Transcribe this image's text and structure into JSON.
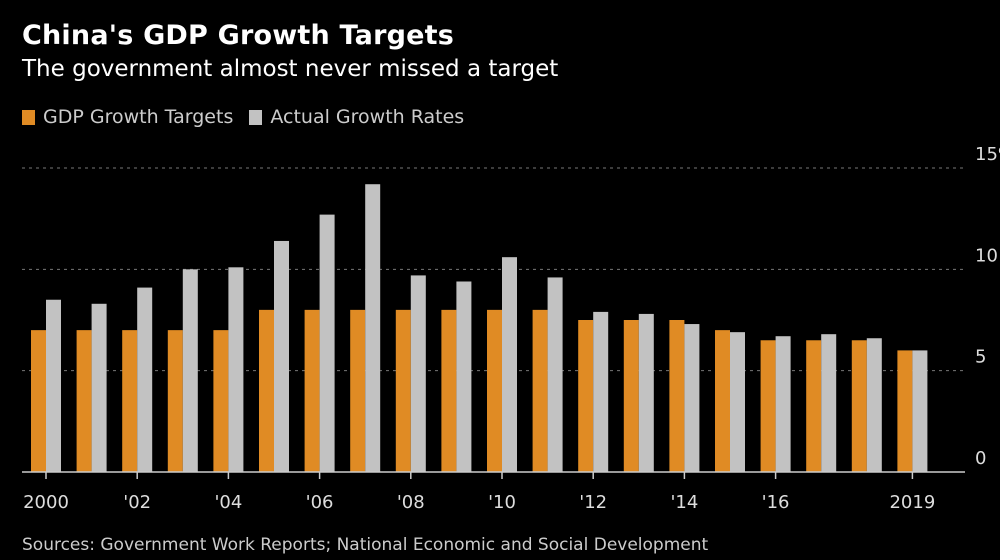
{
  "chart_data": {
    "type": "bar",
    "title": "China's GDP Growth Targets",
    "subtitle": "The government almost never missed a target",
    "categories": [
      "2000",
      "2001",
      "2002",
      "2003",
      "2004",
      "2005",
      "2006",
      "2007",
      "2008",
      "2009",
      "2010",
      "2011",
      "2012",
      "2013",
      "2014",
      "2015",
      "2016",
      "2017",
      "2018",
      "2019"
    ],
    "series": [
      {
        "name": "GDP Growth Targets",
        "color": "#e08b24",
        "values": [
          7,
          7,
          7,
          7,
          7,
          8,
          8,
          8,
          8,
          8,
          8,
          8,
          7.5,
          7.5,
          7.5,
          7,
          6.5,
          6.5,
          6.5,
          6
        ]
      },
      {
        "name": "Actual Growth Rates",
        "color": "#c2c2c2",
        "values": [
          8.5,
          8.3,
          9.1,
          10.0,
          10.1,
          11.4,
          12.7,
          14.2,
          9.7,
          9.4,
          10.6,
          9.6,
          7.9,
          7.8,
          7.3,
          6.9,
          6.7,
          6.8,
          6.6,
          6.0
        ]
      }
    ],
    "x_tick_labels": [
      {
        "category": "2000",
        "label": "2000"
      },
      {
        "category": "2002",
        "label": "'02"
      },
      {
        "category": "2004",
        "label": "'04"
      },
      {
        "category": "2006",
        "label": "'06"
      },
      {
        "category": "2008",
        "label": "'08"
      },
      {
        "category": "2010",
        "label": "'10"
      },
      {
        "category": "2012",
        "label": "'12"
      },
      {
        "category": "2014",
        "label": "'14"
      },
      {
        "category": "2016",
        "label": "'16"
      },
      {
        "category": "2019",
        "label": "2019"
      }
    ],
    "y_ticks": [
      {
        "value": 0,
        "label": "0"
      },
      {
        "value": 5,
        "label": "5"
      },
      {
        "value": 10,
        "label": "10"
      },
      {
        "value": 15,
        "label": "15%"
      }
    ],
    "ylim": [
      0,
      15
    ],
    "grid": true,
    "y_axis_side": "right",
    "legend_placement": "top-left",
    "xlabel": "",
    "ylabel": ""
  },
  "source": "Sources: Government Work Reports; National Economic and Social Development"
}
